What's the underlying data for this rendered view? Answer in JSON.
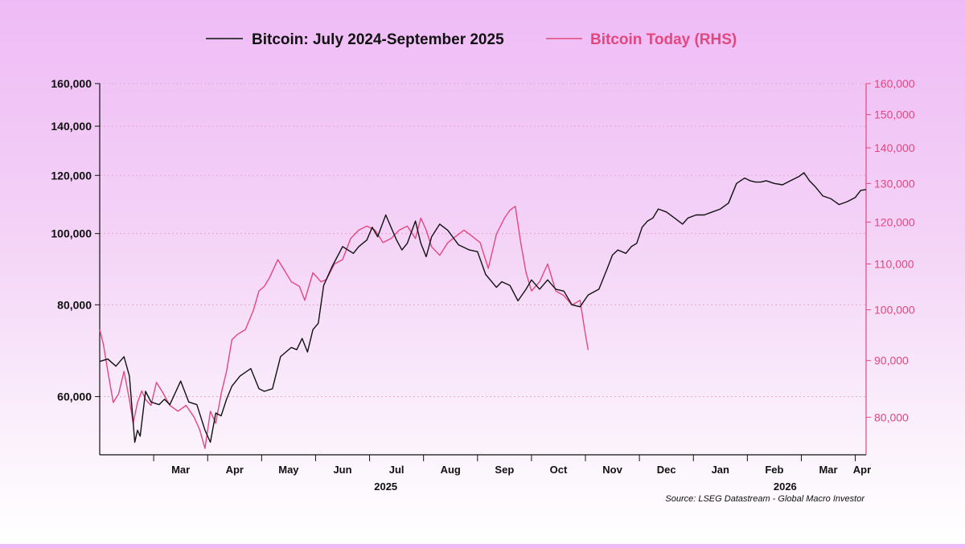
{
  "colors": {
    "black_series": "#111111",
    "pink_series": "#e0487f",
    "grid": "#e6a6cf"
  },
  "legend": {
    "series1_label": "Bitcoin: July 2024-September 2025",
    "series2_label": "Bitcoin Today (RHS)"
  },
  "source": "Source: LSEG Datastream - Global Macro Investor",
  "chart_data": {
    "type": "line",
    "title": "",
    "x_unit": "months from start (left edge = mid-February 2025)",
    "xlim": [
      0,
      14.2
    ],
    "x_ticks": [
      {
        "x": 1,
        "label": "Mar"
      },
      {
        "x": 2,
        "label": "Apr"
      },
      {
        "x": 3,
        "label": "May"
      },
      {
        "x": 4,
        "label": "Jun"
      },
      {
        "x": 5,
        "label": "Jul"
      },
      {
        "x": 6,
        "label": "Aug"
      },
      {
        "x": 7,
        "label": "Sep"
      },
      {
        "x": 8,
        "label": "Oct"
      },
      {
        "x": 9,
        "label": "Nov"
      },
      {
        "x": 10,
        "label": "Dec"
      },
      {
        "x": 11,
        "label": "Jan"
      },
      {
        "x": 12,
        "label": "Feb"
      },
      {
        "x": 13,
        "label": "Mar"
      },
      {
        "x": 14,
        "label": "Apr"
      }
    ],
    "year_labels": [
      {
        "x": 5.3,
        "label": "2025"
      },
      {
        "x": 12.7,
        "label": "2026"
      }
    ],
    "left_axis": {
      "scale": "log",
      "ylim": [
        50000,
        160000
      ],
      "ticks": [
        60000,
        80000,
        100000,
        120000,
        140000,
        160000
      ],
      "tick_labels": [
        "60,000",
        "80,000",
        "100,000",
        "120,000",
        "140,000",
        "160,000"
      ]
    },
    "right_axis": {
      "scale": "log",
      "ylim": [
        74000,
        160000
      ],
      "ticks": [
        80000,
        90000,
        100000,
        110000,
        120000,
        130000,
        140000,
        150000,
        160000
      ],
      "tick_labels": [
        "80,000",
        "90,000",
        "100,000",
        "110,000",
        "120,000",
        "130,000",
        "140,000",
        "150,000",
        "160,000"
      ]
    },
    "series": [
      {
        "name": "Bitcoin: July 2024-September 2025",
        "axis": "left",
        "x": [
          0,
          0.15,
          0.3,
          0.45,
          0.55,
          0.65,
          0.7,
          0.75,
          0.85,
          0.95,
          1.1,
          1.2,
          1.3,
          1.5,
          1.65,
          1.8,
          1.95,
          2.05,
          2.15,
          2.25,
          2.35,
          2.45,
          2.6,
          2.8,
          2.95,
          3.05,
          3.2,
          3.35,
          3.45,
          3.55,
          3.65,
          3.75,
          3.85,
          3.95,
          4.05,
          4.15,
          4.3,
          4.5,
          4.7,
          4.8,
          4.95,
          5.05,
          5.15,
          5.3,
          5.5,
          5.6,
          5.7,
          5.85,
          5.95,
          6.05,
          6.15,
          6.3,
          6.45,
          6.65,
          6.85,
          7.0,
          7.15,
          7.35,
          7.45,
          7.6,
          7.75,
          7.9,
          8.0,
          8.15,
          8.3,
          8.45,
          8.6,
          8.75,
          8.9,
          9.05,
          9.25,
          9.4,
          9.5,
          9.6,
          9.75,
          9.85,
          9.95,
          10.05,
          10.15,
          10.25,
          10.35,
          10.5,
          10.65,
          10.8,
          10.9,
          11.05,
          11.2,
          11.35,
          11.5,
          11.65,
          11.8,
          11.95,
          12.05,
          12.15,
          12.25,
          12.35,
          12.5,
          12.65,
          12.8,
          12.95,
          13.05,
          13.15,
          13.25,
          13.4,
          13.55,
          13.7,
          13.85,
          14.0,
          14.1,
          14.2
        ],
        "values": [
          67000,
          67500,
          66000,
          68000,
          64000,
          52000,
          54000,
          53000,
          61000,
          59000,
          58500,
          59500,
          58500,
          63000,
          59000,
          58500,
          54000,
          52000,
          57000,
          56500,
          59500,
          62000,
          64000,
          65500,
          61500,
          61000,
          61500,
          68000,
          69000,
          70000,
          69500,
          72000,
          69000,
          74000,
          75500,
          85000,
          90000,
          96000,
          94000,
          96000,
          98000,
          102000,
          99000,
          106000,
          98000,
          95000,
          97000,
          104000,
          97000,
          93000,
          99000,
          103000,
          101000,
          96500,
          95000,
          94500,
          88000,
          84500,
          86000,
          85000,
          81000,
          84000,
          86500,
          84000,
          86500,
          84000,
          83500,
          80000,
          79500,
          82500,
          84000,
          89500,
          93500,
          95000,
          94000,
          96000,
          97000,
          102000,
          104000,
          105000,
          108000,
          107000,
          105000,
          103000,
          105000,
          106000,
          106000,
          107000,
          108000,
          110000,
          117000,
          119000,
          118000,
          117500,
          117500,
          118000,
          117000,
          116500,
          118000,
          119500,
          121000,
          118000,
          116000,
          112500,
          111500,
          109500,
          110500,
          112000,
          114500,
          114800
        ]
      },
      {
        "name": "Bitcoin Today (RHS)",
        "axis": "right",
        "x": [
          0,
          0.07,
          0.15,
          0.25,
          0.35,
          0.45,
          0.55,
          0.62,
          0.7,
          0.78,
          0.85,
          0.95,
          1.05,
          1.15,
          1.3,
          1.45,
          1.6,
          1.75,
          1.85,
          1.95,
          2.05,
          2.15,
          2.25,
          2.35,
          2.45,
          2.55,
          2.7,
          2.85,
          2.95,
          3.05,
          3.15,
          3.3,
          3.4,
          3.55,
          3.7,
          3.8,
          3.95,
          4.1,
          4.2,
          4.35,
          4.5,
          4.65,
          4.8,
          4.95,
          5.1,
          5.25,
          5.4,
          5.55,
          5.7,
          5.85,
          5.95,
          6.05,
          6.15,
          6.3,
          6.45,
          6.6,
          6.75,
          6.9,
          7.05,
          7.2,
          7.35,
          7.5,
          7.6,
          7.7,
          7.8,
          7.9,
          8.0,
          8.15,
          8.3,
          8.45,
          8.6,
          8.75,
          8.9,
          9.0,
          9.05
        ],
        "values": [
          96000,
          93000,
          88000,
          82500,
          84000,
          88000,
          83000,
          79000,
          82500,
          84500,
          83000,
          82000,
          86000,
          84500,
          82000,
          81000,
          82000,
          80000,
          78000,
          75000,
          81000,
          79000,
          84000,
          88000,
          94000,
          95000,
          96000,
          100000,
          104000,
          105000,
          107000,
          111000,
          109000,
          106000,
          105000,
          102000,
          108000,
          106000,
          106500,
          110000,
          111000,
          116000,
          118000,
          119000,
          118000,
          115000,
          116000,
          118000,
          119000,
          116000,
          121000,
          118000,
          114000,
          112000,
          115000,
          116500,
          118000,
          116500,
          115000,
          109000,
          117000,
          121000,
          123000,
          124000,
          115000,
          108000,
          104000,
          106000,
          110000,
          104000,
          103000,
          101000,
          102000,
          95000,
          92000
        ]
      }
    ]
  }
}
